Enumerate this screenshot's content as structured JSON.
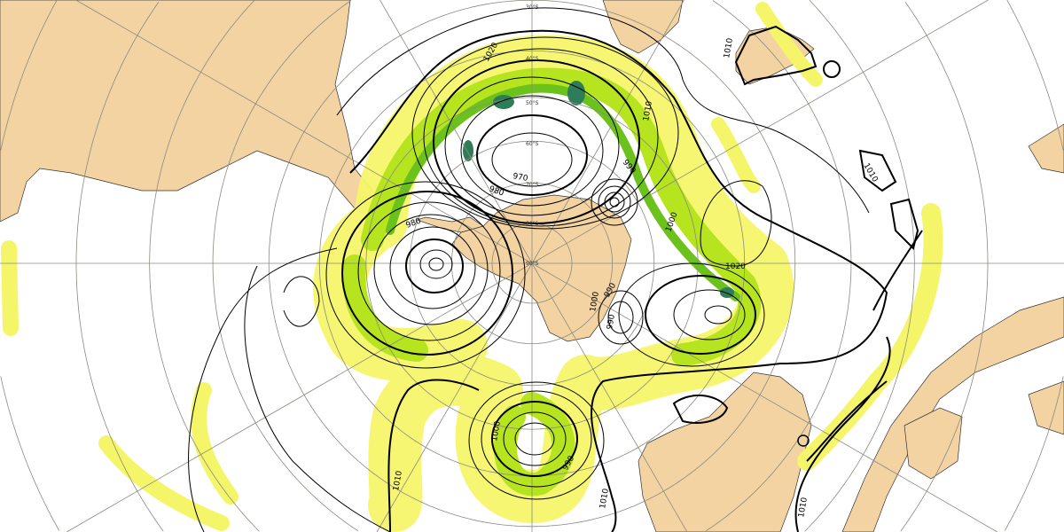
{
  "map": {
    "projection_center": "90°S",
    "colors": {
      "land": "#f3d3a2",
      "ocean": "#ffffff",
      "precip_light": "#f5f56a",
      "precip_medium": "#b6e41e",
      "precip_heavy": "#6cc21c",
      "precip_extreme": "#2f7d58",
      "isobar": "#000000",
      "graticule": "#8a8a80"
    },
    "latitude_labels": [
      "30°S",
      "40°S",
      "50°S",
      "60°S",
      "70°S",
      "80°S",
      "90°S"
    ],
    "isobar_labels": [
      "1020",
      "1010",
      "990",
      "1000",
      "1020",
      "980",
      "980",
      "970",
      "990",
      "1000",
      "990",
      "1000",
      "990",
      "1010",
      "1010",
      "1010",
      "1010",
      "1010"
    ]
  }
}
